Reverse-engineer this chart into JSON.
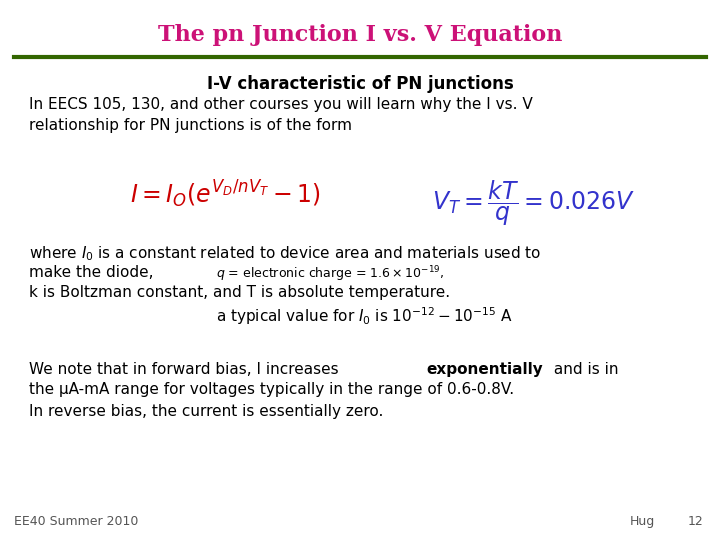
{
  "title": "The pn Junction I vs. V Equation",
  "title_color": "#CC1177",
  "line_color": "#336600",
  "subtitle": "I-V characteristic of PN junctions",
  "body_text1": "In EECS 105, 130, and other courses you will learn why the I vs. V\nrelationship for PN junctions is of the form",
  "footer_left": "EE40 Summer 2010",
  "footer_right": "Hug",
  "footer_page": "12",
  "bg_color": "#FFFFFF",
  "text_color": "#000000",
  "formula_color_iv": "#CC0000",
  "formula_color_vt": "#3333CC"
}
